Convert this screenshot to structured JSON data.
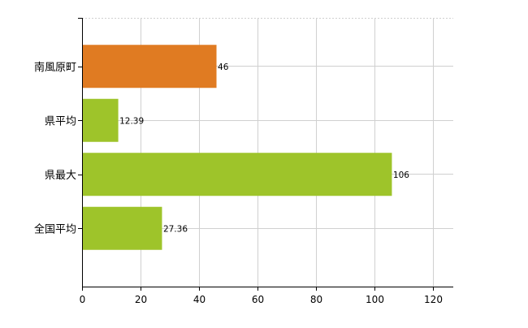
{
  "chart_data": {
    "type": "bar",
    "orientation": "horizontal",
    "categories": [
      "南風原町",
      "県平均",
      "県最大",
      "全国平均"
    ],
    "values": [
      46,
      12.39,
      106,
      27.36
    ],
    "data_labels": [
      "46",
      "12.39",
      "106",
      "27.36"
    ],
    "bar_colors": [
      "#e07b22",
      "#9ec42a",
      "#9ec42a",
      "#9ec42a"
    ],
    "xlim": [
      0,
      127
    ],
    "x_ticks": [
      0,
      20,
      40,
      60,
      80,
      100,
      120
    ],
    "x_tick_labels": [
      "0",
      "20",
      "40",
      "60",
      "80",
      "100",
      "120"
    ],
    "grid": true,
    "grid_color": "#d0d0d0",
    "title": "",
    "xlabel": "",
    "ylabel": ""
  }
}
